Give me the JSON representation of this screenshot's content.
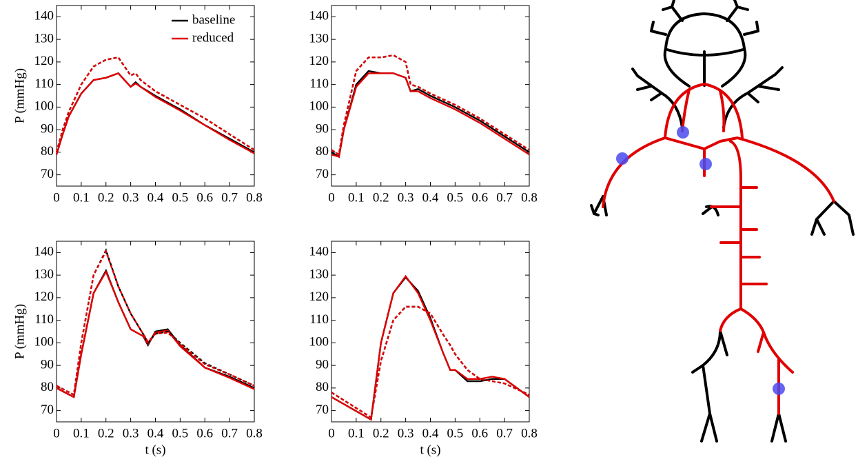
{
  "chart_data": [
    {
      "type": "line",
      "y_label": "P (mmHg)",
      "legend": "upper right",
      "xlim": [
        0,
        0.8
      ],
      "xticks": [
        0,
        0.1,
        0.2,
        0.3,
        0.4,
        0.5,
        0.6,
        0.7,
        0.8
      ],
      "ylim": [
        65,
        145
      ],
      "yticks": [
        70,
        80,
        90,
        100,
        110,
        120,
        130,
        140
      ],
      "x": [
        0,
        0.025,
        0.05,
        0.1,
        0.15,
        0.2,
        0.25,
        0.3,
        0.32,
        0.34,
        0.4,
        0.5,
        0.6,
        0.7,
        0.8
      ],
      "series": [
        {
          "name": "baseline",
          "color": "#000000",
          "values": [
            79,
            88,
            96,
            106,
            112,
            113,
            115,
            109,
            111,
            109,
            105,
            99,
            92,
            86,
            80
          ]
        },
        {
          "name": "reduced",
          "color": "#e00000",
          "values": [
            79,
            88,
            96,
            106,
            112,
            113,
            115,
            109,
            110.5,
            109,
            104.5,
            98.5,
            92,
            85.5,
            79.5
          ]
        },
        {
          "color": "#000000",
          "dashed": true,
          "values": [
            80,
            90,
            98,
            110,
            118,
            121,
            122,
            114,
            115,
            112,
            107,
            101,
            95,
            88,
            81
          ]
        },
        {
          "color": "#e00000",
          "dashed": true,
          "values": [
            80,
            90,
            98,
            110,
            118,
            121,
            122,
            114,
            115,
            112,
            107,
            101,
            95,
            88,
            81
          ]
        }
      ]
    },
    {
      "type": "line",
      "xlim": [
        0,
        0.8
      ],
      "xticks": [
        0,
        0.1,
        0.2,
        0.3,
        0.4,
        0.5,
        0.6,
        0.7,
        0.8
      ],
      "ylim": [
        65,
        145
      ],
      "yticks": [
        70,
        80,
        90,
        100,
        110,
        120,
        130,
        140
      ],
      "x": [
        0,
        0.03,
        0.05,
        0.1,
        0.15,
        0.2,
        0.25,
        0.3,
        0.32,
        0.35,
        0.4,
        0.5,
        0.6,
        0.7,
        0.8
      ],
      "series": [
        {
          "color": "#000000",
          "values": [
            80,
            78,
            90,
            110,
            116,
            115,
            115,
            113,
            107,
            108,
            105,
            100,
            94,
            87,
            80
          ]
        },
        {
          "color": "#e00000",
          "values": [
            79,
            78,
            90,
            109,
            115,
            115,
            115,
            113,
            107,
            107,
            104,
            99,
            93,
            86,
            79
          ]
        },
        {
          "color": "#000000",
          "dashed": true,
          "values": [
            81,
            79,
            92,
            116,
            122,
            122,
            123,
            120,
            110,
            109,
            106,
            101,
            95,
            88,
            81
          ]
        },
        {
          "color": "#e00000",
          "dashed": true,
          "values": [
            81,
            79,
            92,
            116,
            122,
            122,
            123,
            120,
            110,
            109,
            106,
            101,
            95,
            88,
            81
          ]
        }
      ]
    },
    {
      "type": "line",
      "y_label": "P (mmHg)",
      "x_label": "t (s)",
      "xlim": [
        0,
        0.8
      ],
      "xticks": [
        0,
        0.1,
        0.2,
        0.3,
        0.4,
        0.5,
        0.6,
        0.7,
        0.8
      ],
      "ylim": [
        65,
        145
      ],
      "yticks": [
        70,
        80,
        90,
        100,
        110,
        120,
        130,
        140
      ],
      "x": [
        0,
        0.07,
        0.1,
        0.15,
        0.2,
        0.25,
        0.3,
        0.35,
        0.37,
        0.4,
        0.45,
        0.5,
        0.6,
        0.7,
        0.8
      ],
      "series": [
        {
          "color": "#000000",
          "values": [
            80,
            76,
            95,
            122,
            132,
            118,
            106,
            103,
            99,
            105,
            106,
            99,
            89,
            85,
            80
          ]
        },
        {
          "color": "#e00000",
          "values": [
            80,
            76,
            95,
            122,
            131.5,
            118,
            106,
            103,
            99.5,
            104.5,
            105.5,
            98.5,
            89,
            84.5,
            79.5
          ]
        },
        {
          "color": "#000000",
          "dashed": true,
          "values": [
            81,
            77,
            100,
            130,
            141,
            125,
            113,
            104,
            100,
            104,
            105,
            100,
            91,
            86,
            81
          ]
        },
        {
          "color": "#e00000",
          "dashed": true,
          "values": [
            81,
            77,
            100,
            130,
            140.5,
            125,
            113,
            104,
            100.5,
            104,
            104.5,
            99.5,
            90.5,
            86,
            81
          ]
        }
      ]
    },
    {
      "type": "line",
      "x_label": "t (s)",
      "xlim": [
        0,
        0.8
      ],
      "xticks": [
        0,
        0.1,
        0.2,
        0.3,
        0.4,
        0.5,
        0.6,
        0.7,
        0.8
      ],
      "ylim": [
        65,
        145
      ],
      "yticks": [
        70,
        80,
        90,
        100,
        110,
        120,
        130,
        140
      ],
      "x": [
        0,
        0.16,
        0.2,
        0.25,
        0.3,
        0.35,
        0.4,
        0.45,
        0.48,
        0.5,
        0.55,
        0.6,
        0.65,
        0.7,
        0.8
      ],
      "series": [
        {
          "color": "#000000",
          "values": [
            76,
            66,
            100,
            122,
            129,
            123,
            111,
            96,
            88,
            88,
            83,
            83,
            84,
            84,
            76
          ]
        },
        {
          "color": "#e00000",
          "values": [
            76,
            66,
            100,
            122,
            129.5,
            122,
            110,
            96,
            88,
            88,
            84,
            84,
            85,
            84,
            76
          ]
        },
        {
          "color": "#000000",
          "dashed": true,
          "values": [
            78,
            67,
            92,
            110,
            116,
            116,
            113,
            104,
            99,
            95,
            88,
            84,
            83,
            82,
            77
          ]
        },
        {
          "color": "#e00000",
          "dashed": true,
          "values": [
            78,
            67,
            92,
            110,
            116,
            116,
            113,
            104,
            99,
            95,
            88,
            84,
            83,
            82,
            77
          ]
        }
      ]
    }
  ]
}
